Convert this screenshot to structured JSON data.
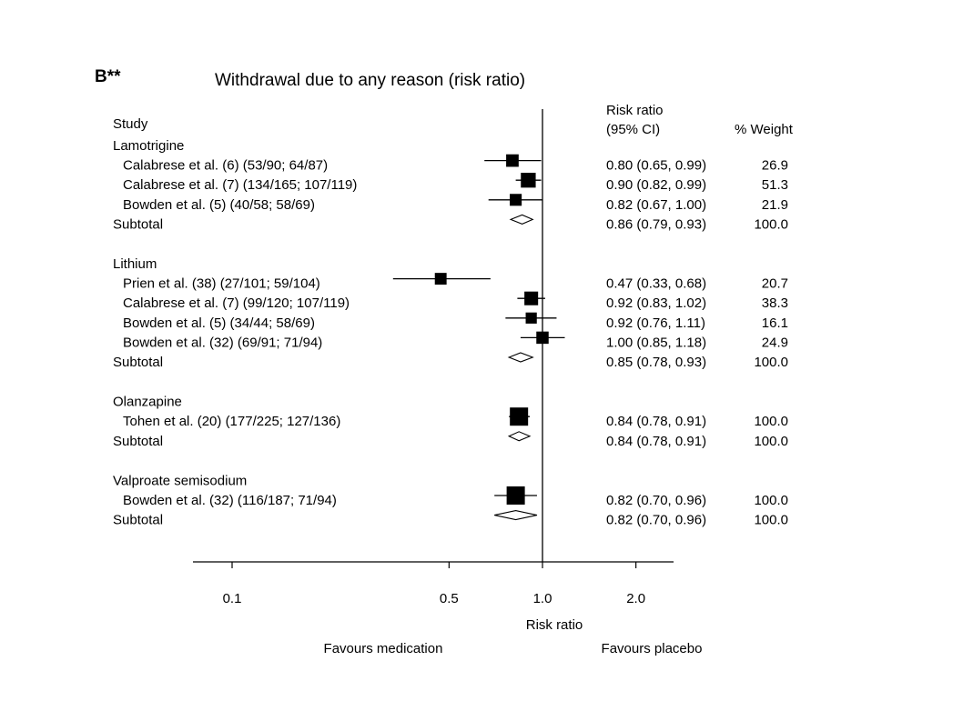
{
  "panel_label": "B**",
  "chart_data": {
    "type": "forest",
    "title": "Withdrawal due to any reason (risk ratio)",
    "xlabel": "Risk ratio",
    "xscale": "log",
    "xlim": [
      0.075,
      2.5
    ],
    "xticks": [
      0.1,
      0.5,
      1.0,
      2.0
    ],
    "xtick_labels": [
      "0.1",
      "0.5",
      "1.0",
      "2.0"
    ],
    "reference_line": 1.0,
    "favours_left": "Favours medication",
    "favours_right": "Favours placebo",
    "headers": {
      "study": "Study",
      "rr_line1": "Risk ratio",
      "rr_line2": "(95% CI)",
      "weight": "% Weight"
    },
    "rows": [
      {
        "kind": "group",
        "label": "Lamotrigine"
      },
      {
        "kind": "study",
        "label": "Calabrese et al. (6) (53/90; 64/87)",
        "rr": 0.8,
        "lo": 0.65,
        "hi": 0.99,
        "ci_text": "0.80 (0.65, 0.99)",
        "weight": "26.9",
        "weight_value": 26.9
      },
      {
        "kind": "study",
        "label": "Calabrese et al. (7) (134/165; 107/119)",
        "rr": 0.9,
        "lo": 0.82,
        "hi": 0.99,
        "ci_text": "0.90 (0.82, 0.99)",
        "weight": "51.3",
        "weight_value": 51.3
      },
      {
        "kind": "study",
        "label": "Bowden et al. (5) (40/58; 58/69)",
        "rr": 0.82,
        "lo": 0.67,
        "hi": 1.0,
        "ci_text": "0.82 (0.67, 1.00)",
        "weight": "21.9",
        "weight_value": 21.9
      },
      {
        "kind": "subtotal",
        "label": "Subtotal",
        "rr": 0.86,
        "lo": 0.79,
        "hi": 0.93,
        "ci_text": "0.86 (0.79, 0.93)",
        "weight": "100.0"
      },
      {
        "kind": "group",
        "label": "Lithium"
      },
      {
        "kind": "study",
        "label": "Prien et al. (38) (27/101; 59/104)",
        "rr": 0.47,
        "lo": 0.33,
        "hi": 0.68,
        "ci_text": "0.47 (0.33, 0.68)",
        "weight": "20.7",
        "weight_value": 20.7
      },
      {
        "kind": "study",
        "label": "Calabrese et al. (7) (99/120; 107/119)",
        "rr": 0.92,
        "lo": 0.83,
        "hi": 1.02,
        "ci_text": "0.92 (0.83, 1.02)",
        "weight": "38.3",
        "weight_value": 38.3
      },
      {
        "kind": "study",
        "label": "Bowden et al. (5) (34/44; 58/69)",
        "rr": 0.92,
        "lo": 0.76,
        "hi": 1.11,
        "ci_text": "0.92 (0.76, 1.11)",
        "weight": "16.1",
        "weight_value": 16.1
      },
      {
        "kind": "study",
        "label": "Bowden et al. (32) (69/91; 71/94)",
        "rr": 1.0,
        "lo": 0.85,
        "hi": 1.18,
        "ci_text": "1.00 (0.85, 1.18)",
        "weight": "24.9",
        "weight_value": 24.9
      },
      {
        "kind": "subtotal",
        "label": "Subtotal",
        "rr": 0.85,
        "lo": 0.78,
        "hi": 0.93,
        "ci_text": "0.85 (0.78, 0.93)",
        "weight": "100.0"
      },
      {
        "kind": "group",
        "label": "Olanzapine"
      },
      {
        "kind": "study",
        "label": "Tohen et al. (20) (177/225; 127/136)",
        "rr": 0.84,
        "lo": 0.78,
        "hi": 0.91,
        "ci_text": "0.84 (0.78, 0.91)",
        "weight": "100.0",
        "weight_value": 100.0
      },
      {
        "kind": "subtotal",
        "label": "Subtotal",
        "rr": 0.84,
        "lo": 0.78,
        "hi": 0.91,
        "ci_text": "0.84 (0.78, 0.91)",
        "weight": "100.0"
      },
      {
        "kind": "group",
        "label": "Valproate semisodium"
      },
      {
        "kind": "study",
        "label": "Bowden et al. (32) (116/187; 71/94)",
        "rr": 0.82,
        "lo": 0.7,
        "hi": 0.96,
        "ci_text": "0.82 (0.70, 0.96)",
        "weight": "100.0",
        "weight_value": 100.0
      },
      {
        "kind": "subtotal",
        "label": "Subtotal",
        "rr": 0.82,
        "lo": 0.7,
        "hi": 0.96,
        "ci_text": "0.82 (0.70, 0.96)",
        "weight": "100.0"
      }
    ]
  }
}
